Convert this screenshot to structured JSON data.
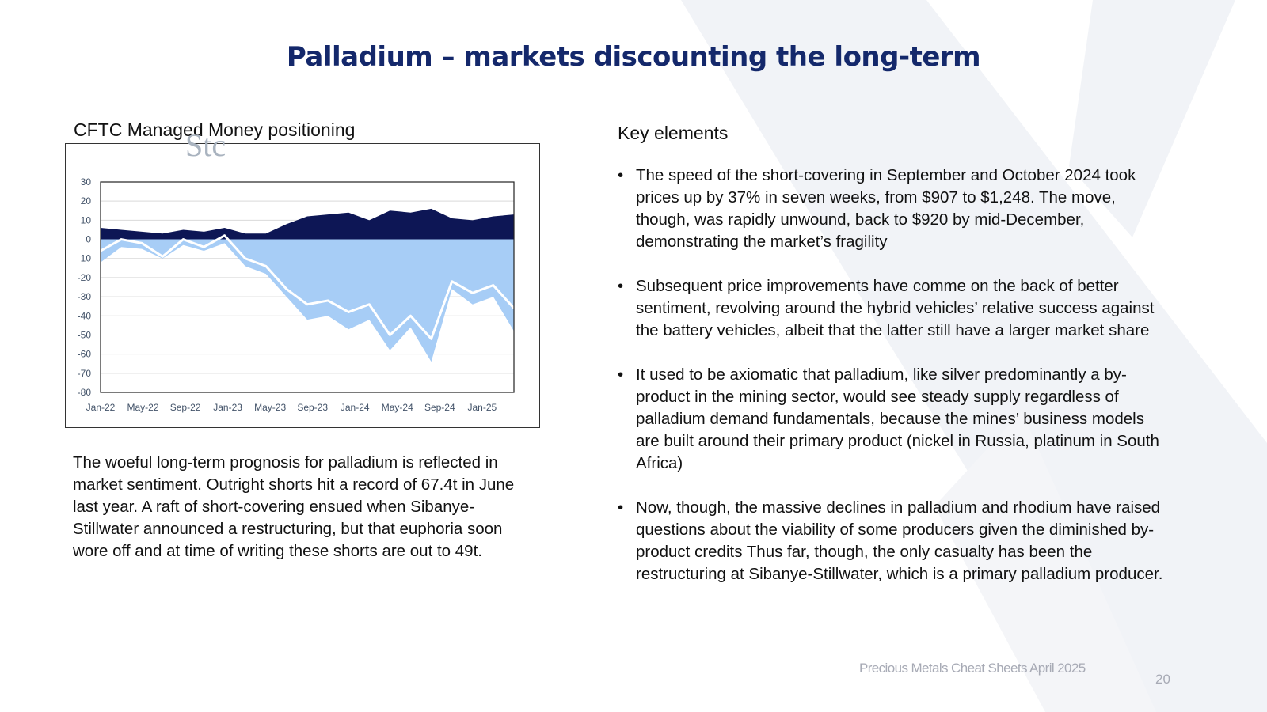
{
  "title": "Palladium – markets discounting the long-term",
  "chart_section": {
    "heading": "CFTC Managed Money positioning",
    "stamp": "Stc"
  },
  "chart_data": {
    "type": "area",
    "title": "CFTC Managed Money positioning",
    "xlabel": "",
    "ylabel": "",
    "ylim": [
      -80,
      30
    ],
    "y_ticks": [
      "30",
      "20",
      "10",
      "0",
      "-10",
      "-20",
      "-30",
      "-40",
      "-50",
      "-60",
      "-70",
      "-80"
    ],
    "x_ticks": [
      "Jan-22",
      "May-22",
      "Sep-22",
      "Jan-23",
      "May-23",
      "Sep-23",
      "Jan-24",
      "May-24",
      "Sep-24",
      "Jan-25"
    ],
    "x_range": [
      "Jan-22",
      "Apr-25"
    ],
    "grid": true,
    "legend": "none",
    "x": [
      "Jan-22",
      "Mar-22",
      "May-22",
      "Jul-22",
      "Sep-22",
      "Nov-22",
      "Jan-23",
      "Mar-23",
      "May-23",
      "Jul-23",
      "Sep-23",
      "Nov-23",
      "Jan-24",
      "Mar-24",
      "May-24",
      "Jul-24",
      "Sep-24",
      "Nov-24",
      "Jan-25",
      "Mar-25",
      "Apr-25"
    ],
    "series": [
      {
        "values": [
          6,
          5,
          4,
          3,
          5,
          4,
          6,
          3,
          3,
          8,
          12,
          13,
          14,
          10,
          15,
          14,
          16,
          11,
          10,
          12,
          13
        ],
        "color": "#0d1655"
      },
      {
        "values": [
          -12,
          -4,
          -5,
          -10,
          -3,
          -6,
          -2,
          -14,
          -18,
          -30,
          -42,
          -40,
          -47,
          -42,
          -58,
          -46,
          -64,
          -26,
          -34,
          -30,
          -48
        ],
        "color": "#a7cdf6"
      },
      {
        "values": [
          -6,
          0,
          -2,
          -9,
          0,
          -4,
          2,
          -10,
          -14,
          -26,
          -34,
          -32,
          -38,
          -34,
          -50,
          -40,
          -52,
          -22,
          -28,
          -24,
          -36
        ],
        "color": "#ffffff"
      }
    ]
  },
  "chart_caption": "The woeful long-term prognosis for palladium is reflected in market sentiment. Outright shorts hit a record of 67.4t in June last year.  A raft of short-covering ensued when Sibanye-Stillwater announced a restructuring, but that euphoria soon wore off and at time of writing these shorts are out to 49t.",
  "key_elements": {
    "heading": "Key elements",
    "bullet_glyph": "•",
    "items": [
      "The speed of the short-covering in September and October 2024 took prices up by 37% in seven weeks, from $907 to $1,248.  The move, though, was  rapidly unwound, back to $920 by mid-December, demonstrating the market’s fragility",
      "Subsequent price improvements have comme on the back of better sentiment, revolving around the hybrid vehicles’ relative success against the battery vehicles, albeit that the latter still have a larger market share",
      "It used to be axiomatic that palladium, like silver predominantly a by-product in the mining sector, would see steady supply regardless of palladium demand fundamentals, because the mines’ business models are built around their primary product (nickel in Russia, platinum in South Africa)",
      "Now, though, the massive declines in palladium and rhodium have raised questions about the viability of some producers given the diminished by-product credits  Thus far, though, the only casualty has been the restructuring at Sibanye-Stillwater, which is a primary palladium producer."
    ]
  },
  "footer": {
    "text": "Precious Metals Cheat Sheets April 2025",
    "page_number": "20"
  },
  "colors": {
    "title": "#14286b",
    "watermark": "#f0f2f6",
    "net_long_area": "#0d1655",
    "short_area": "#a7cdf6",
    "net_line": "#ffffff"
  }
}
